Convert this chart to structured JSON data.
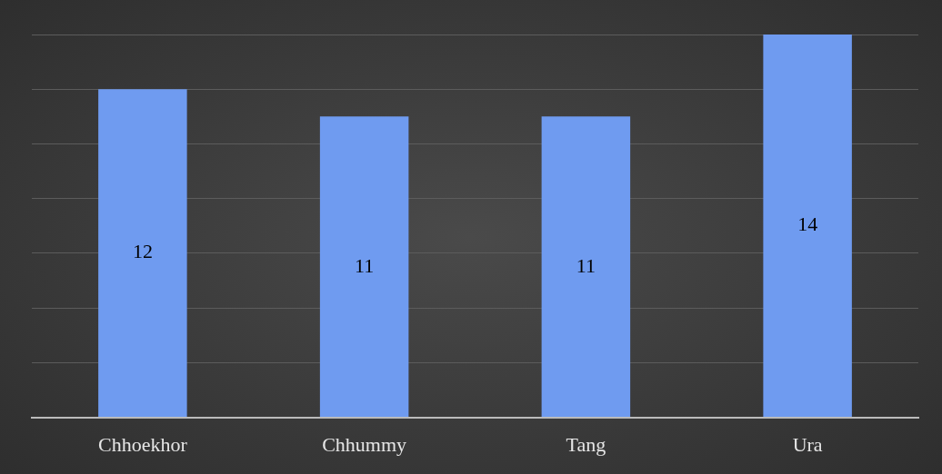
{
  "chart_data": {
    "type": "bar",
    "categories": [
      "Chhoekhor",
      "Chhummy",
      "Tang",
      "Ura"
    ],
    "values": [
      12,
      11,
      11,
      14
    ],
    "color": "#6f9bf0",
    "ylim": [
      0,
      14
    ],
    "yticks": [
      {
        "value": 0,
        "label": null
      },
      {
        "value": 2,
        "label": null
      },
      {
        "value": 4,
        "label": null
      },
      {
        "value": 6,
        "label": null
      },
      {
        "value": 8,
        "label": null
      },
      {
        "value": 10,
        "label": null
      },
      {
        "value": 12,
        "label": null
      },
      {
        "value": 14,
        "label": null
      }
    ],
    "grid": "y",
    "data_labels": true,
    "tick_labels": "x"
  }
}
